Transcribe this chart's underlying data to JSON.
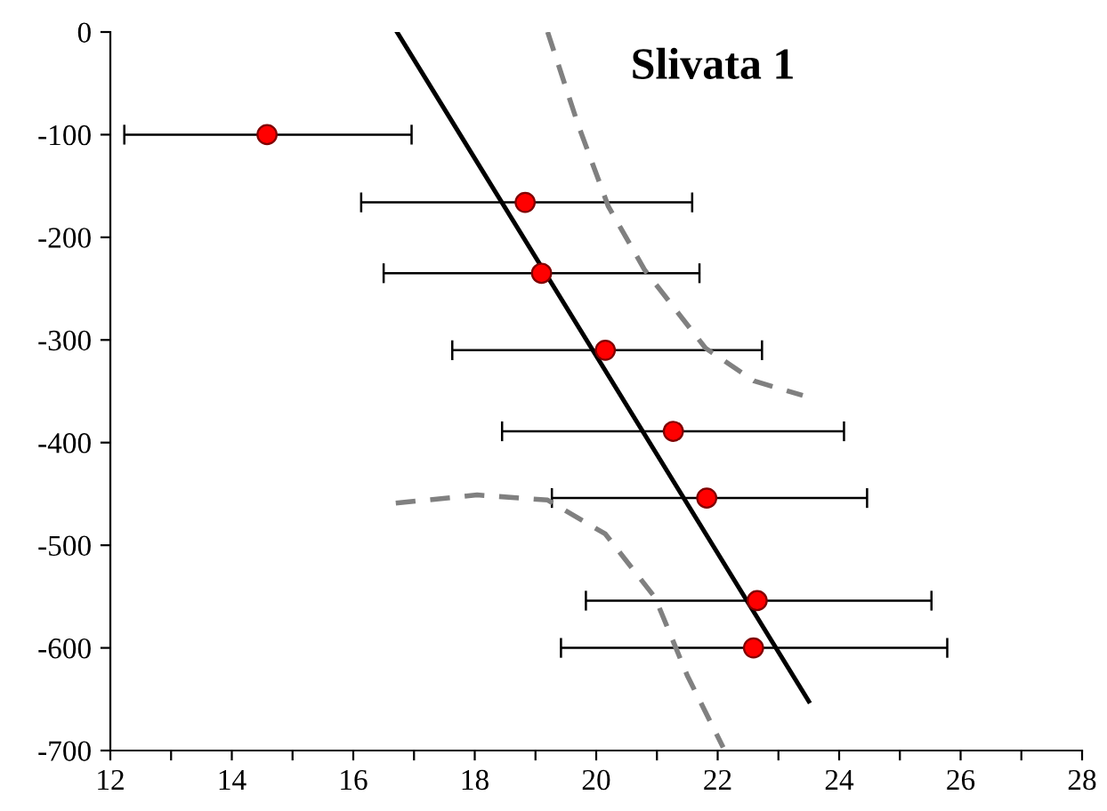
{
  "chart_data": {
    "type": "scatter",
    "title": "Slivata 1",
    "xlim": [
      12,
      28
    ],
    "xticks": [
      12,
      {
        "value": 13,
        "label": null
      },
      14,
      {
        "value": 15,
        "label": null
      },
      16,
      {
        "value": 17,
        "label": null
      },
      18,
      {
        "value": 19,
        "label": null
      },
      20,
      {
        "value": 21,
        "label": null
      },
      22,
      {
        "value": 23,
        "label": null
      },
      24,
      {
        "value": 25,
        "label": null
      },
      26,
      {
        "value": 27,
        "label": null
      },
      28
    ],
    "ylim": [
      -700,
      0
    ],
    "yticks": [
      -700,
      -600,
      -500,
      -400,
      -300,
      -200,
      -100,
      0
    ],
    "grid": false,
    "legend": false,
    "series": [
      {
        "color": "#ff0000",
        "marker": "circle",
        "x": [
          14.58,
          18.83,
          19.1,
          20.15,
          21.27,
          21.82,
          22.65,
          22.59
        ],
        "values": [
          -100,
          -166,
          -235,
          -310,
          -389,
          -454,
          -554,
          -600
        ],
        "xerrors": [
          [
            12.23,
            16.96
          ],
          [
            16.13,
            21.58
          ],
          [
            16.5,
            21.7
          ],
          [
            17.63,
            22.73
          ],
          [
            18.45,
            24.08
          ],
          [
            19.27,
            24.46
          ],
          [
            19.83,
            25.52
          ],
          [
            19.42,
            25.78
          ]
        ]
      },
      {
        "type": "line",
        "color": "#000000",
        "line_style": "solid",
        "x": [
          16.72,
          23.5
        ],
        "values": [
          0,
          -652
        ]
      },
      {
        "type": "line",
        "color": "#808080",
        "line_style": "dashed",
        "x": [
          19.2,
          19.7,
          20.2,
          20.8,
          21.8,
          22.6,
          23.4
        ],
        "values": [
          0,
          -90,
          -170,
          -232,
          -308,
          -340,
          -354
        ]
      },
      {
        "type": "line",
        "color": "#808080",
        "line_style": "dashed",
        "x": [
          16.7,
          18.04,
          19.2,
          20.15,
          20.97,
          21.5,
          22.09
        ],
        "values": [
          -459,
          -451,
          -456,
          -489,
          -551,
          -627,
          -697
        ]
      }
    ]
  }
}
